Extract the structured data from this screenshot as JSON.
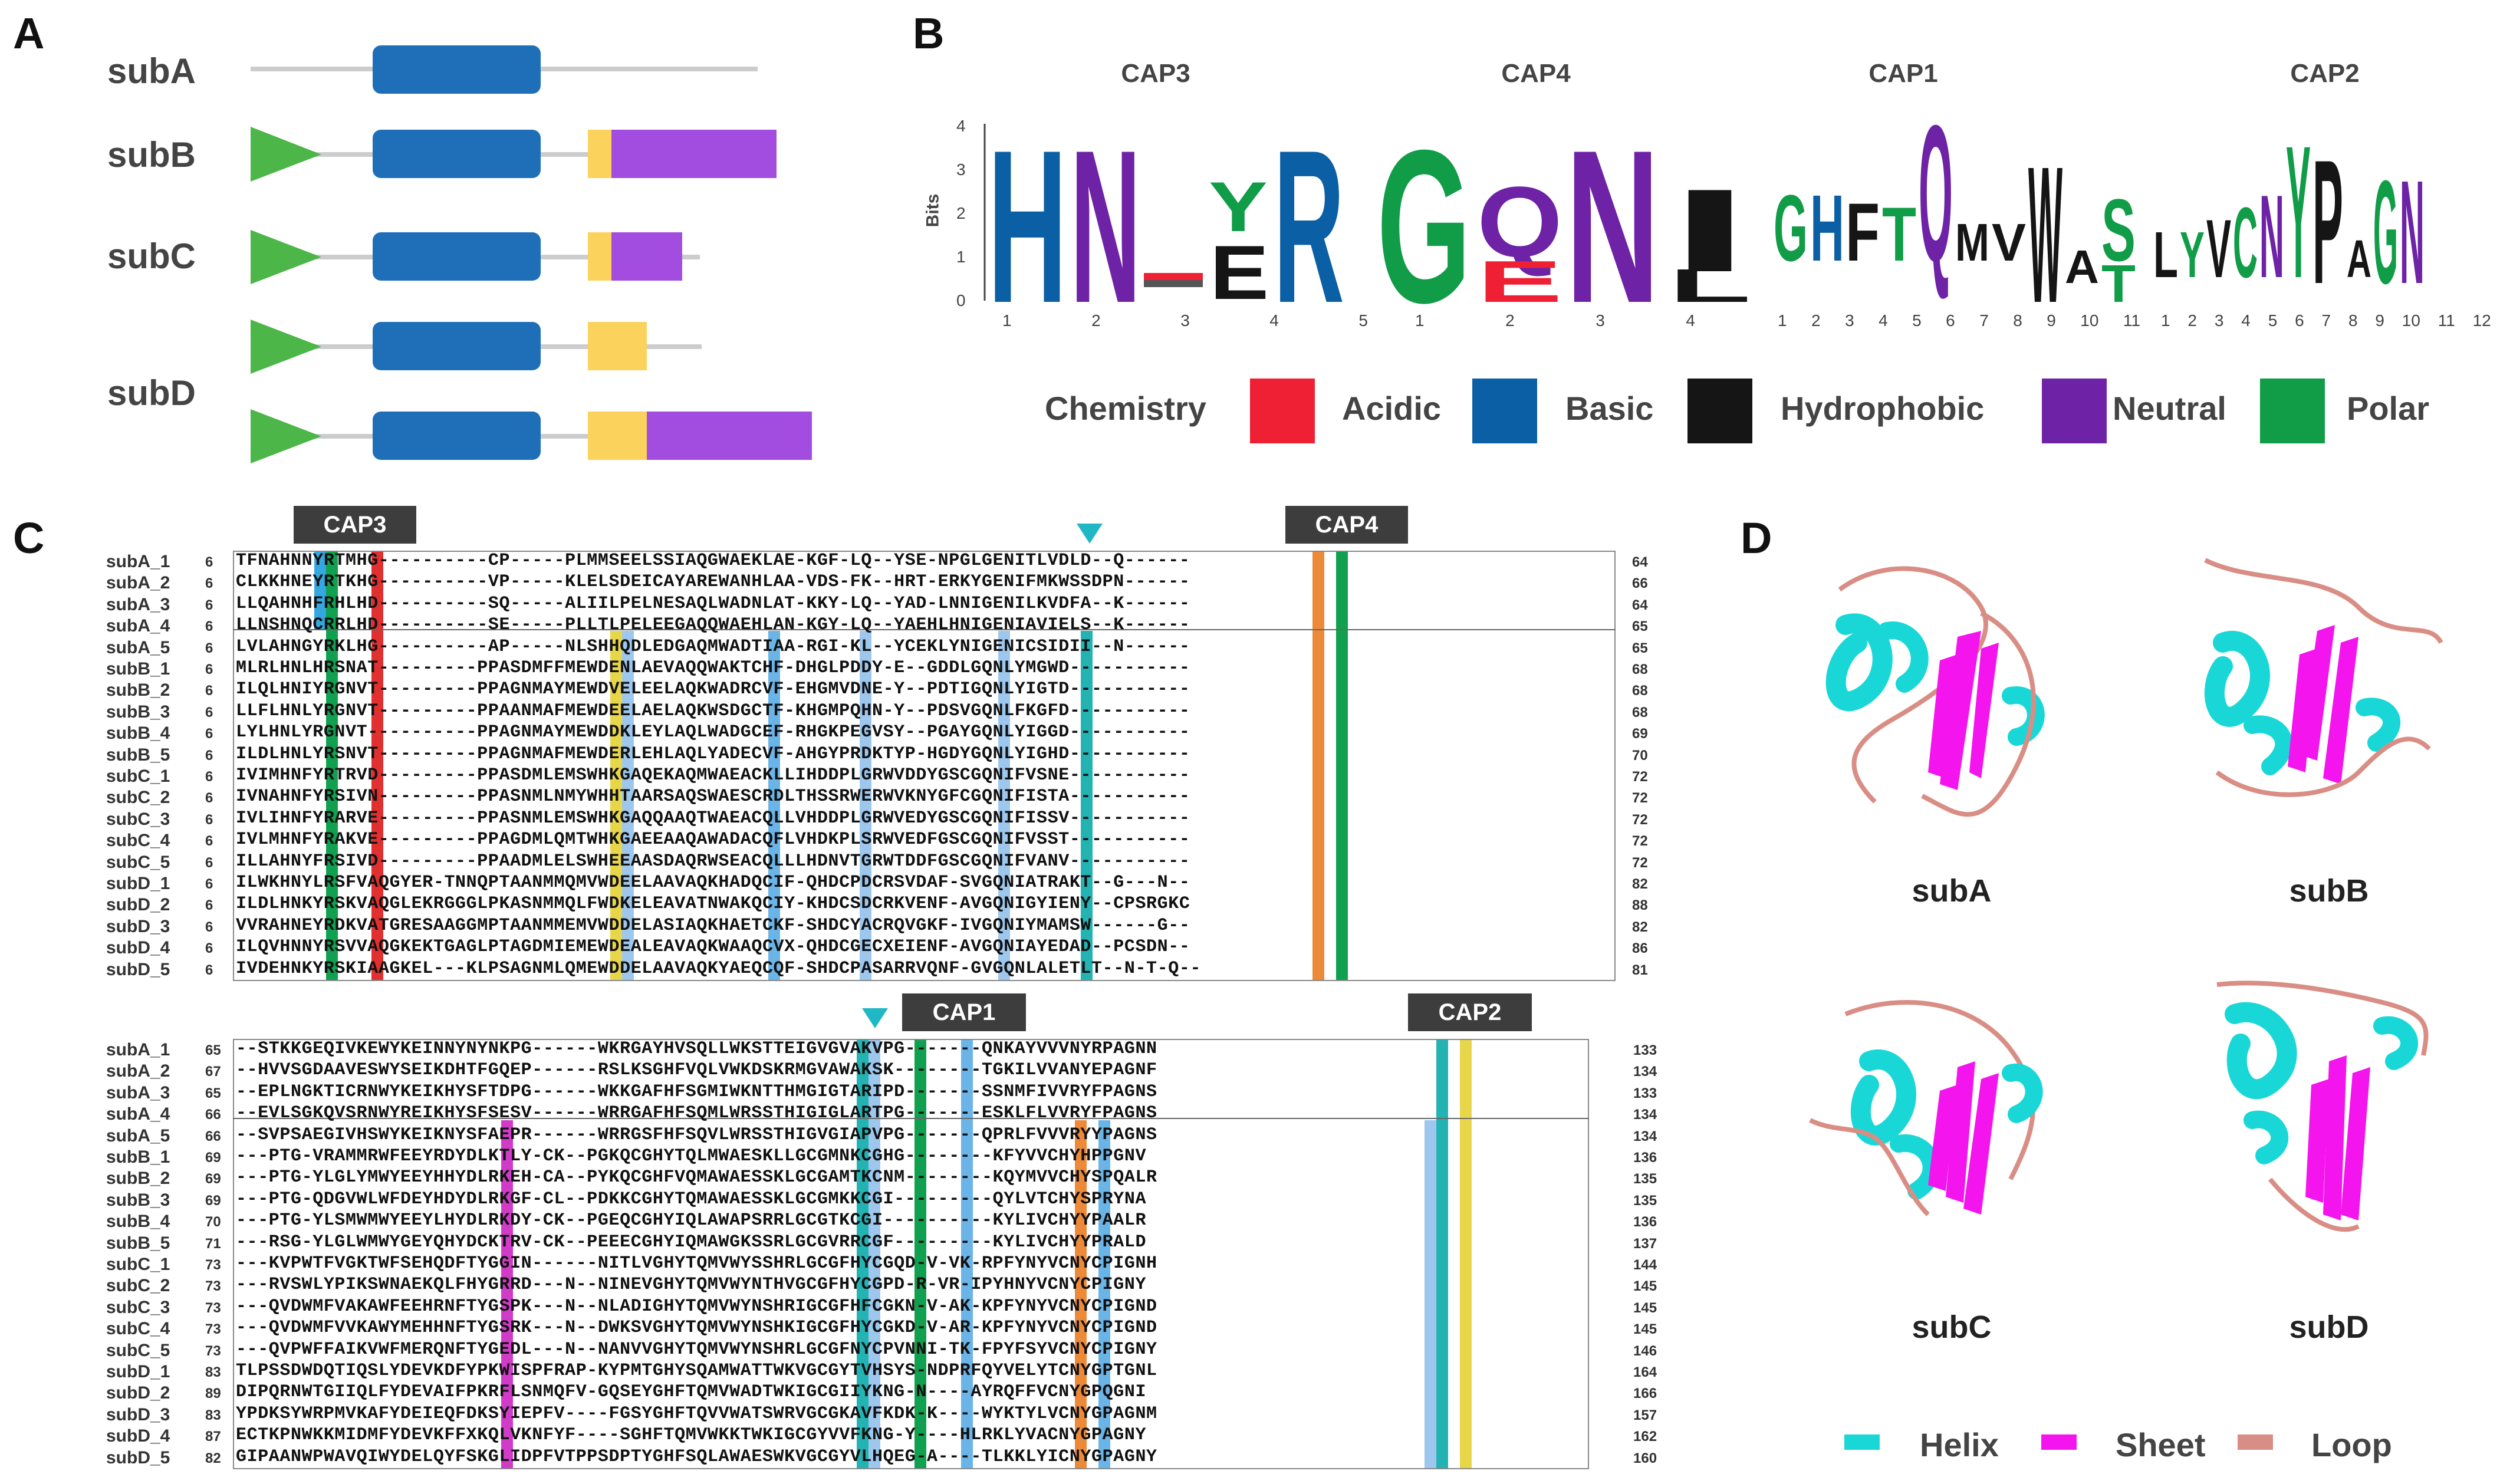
{
  "panels": {
    "a": "A",
    "b": "B",
    "c": "C",
    "d": "D"
  },
  "panelA": {
    "labels": [
      "subA",
      "subB",
      "subC",
      "subD"
    ],
    "colors": {
      "signal": "#4cb649",
      "core": "#1f6fb8",
      "linker": "#fbd35c",
      "cterm": "#a24ddf",
      "line": "#cccccc"
    }
  },
  "panelB": {
    "titles": [
      "CAP3",
      "CAP4",
      "CAP1",
      "CAP2"
    ],
    "ylabel": "Bits",
    "yticks": [
      "4",
      "3",
      "2",
      "1",
      "0"
    ],
    "cap3_ticks": [
      "1",
      "2",
      "3",
      "4",
      "5"
    ],
    "cap4_ticks": [
      "1",
      "2",
      "3",
      "4"
    ],
    "cap1_ticks": [
      "1",
      "2",
      "3",
      "4",
      "5",
      "6",
      "7",
      "8",
      "9",
      "10",
      "11"
    ],
    "cap2_ticks": [
      "1",
      "2",
      "3",
      "4",
      "5",
      "6",
      "7",
      "8",
      "9",
      "10",
      "11",
      "12"
    ],
    "cap3_letters": [
      "H",
      "N",
      "Y",
      "R"
    ],
    "cap3_small": [
      "E"
    ],
    "cap4_letters": [
      "G",
      "Q",
      "N",
      "I"
    ],
    "cap4_small": [
      "E",
      "L"
    ],
    "cap1_letters": [
      "G",
      "H",
      "F",
      "T",
      "Q",
      "M",
      "V",
      "W",
      "A",
      "S",
      "T"
    ],
    "cap2_letters": [
      "L",
      "Y",
      "V",
      "C",
      "N",
      "Y",
      "P",
      "A",
      "G",
      "N"
    ],
    "legend": {
      "title": "Chemistry",
      "items": [
        {
          "label": "Acidic",
          "color": "#ef2033"
        },
        {
          "label": "Basic",
          "color": "#0b5fa5"
        },
        {
          "label": "Hydrophobic",
          "color": "#151515"
        },
        {
          "label": "Neutral",
          "color": "#6e23a6"
        },
        {
          "label": "Polar",
          "color": "#119c48"
        }
      ]
    }
  },
  "panelC": {
    "caps_top": [
      "CAP3",
      "CAP4"
    ],
    "caps_bottom": [
      "CAP1",
      "CAP2"
    ],
    "block1": {
      "names": [
        "subA_1",
        "subA_2",
        "subA_3",
        "subA_4",
        "subA_5",
        "subB_1",
        "subB_2",
        "subB_3",
        "subB_4",
        "subB_5",
        "subC_1",
        "subC_2",
        "subC_3",
        "subC_4",
        "subC_5",
        "subD_1",
        "subD_2",
        "subD_3",
        "subD_4",
        "subD_5"
      ],
      "starts": [
        "6",
        "6",
        "6",
        "6",
        "6",
        "6",
        "6",
        "6",
        "6",
        "6",
        "6",
        "6",
        "6",
        "6",
        "6",
        "6",
        "6",
        "6",
        "6",
        "6"
      ],
      "seqs": [
        "TFNAHNNYRTMHG----------CP-----PLMMSEELSSIAQGWAEKLAE-KGF-LQ--YSE-NPGLGENITLVDLD--Q------",
        "CLKKHNEYRTKHG----------VP-----KLELSDEICAYAREWANHLAA-VDS-FK--HRT-ERKYGENIFMKWSSDPN------",
        "LLQAHNHFRHLHD----------SQ-----ALIILPELNESAQLWADNLAT-KKY-LQ--YAD-LNNIGENILKVDFA--K------",
        "LLNSHNQCRRLHD----------SE-----PLLTLPELEEGAQQWAEHLAN-KGY-LQ--YAEHLHNIGENIAVIELS--K------",
        "LVLAHNGYRKLHG----------AP-----NLSHHQDLEDGAQMWADTIAA-RGI-KL--YCEKLYNIGENICSIDII--N------",
        "MLRLHNLHRSNAT---------PPASDMFFMEWDENLAEVAQQWAKTCHF-DHGLPDDY-E--GDDLGQNLYMGWD-----------",
        "ILQLHNIYRGNVT---------PPAGNMAYMEWDVELEELAQKWADRCVF-EHGMVDNE-Y--PDTIGQNLYIGTD-----------",
        "LLFLHNLYRGNVT---------PPAANMAFMEWDEELAELAQKWSDGCTF-KHGMPQHN-Y--PDSVGQNLFKGFD-----------",
        "LYLHNLYRGNVT----------PPAGNMAYMEWDDKLEYLAQLWADGCEF-RHGKPEGVSY--PGAYGQNLYIGGD-----------",
        "ILDLHNLYRSNVT---------PPAGNMAFMEWDERLEHLAQLYADECVF-AHGYPRDKTYP-HGDYGQNLYIGHD-----------",
        "IVIMHNFYRTRVD---------PPASDMLEMSWHKGAQEKAQMWAEACKLLIHDDPLGRWVDDYGSCGQNIFVSNE-----------",
        "IVNAHNFYRSIVN---------PPASNMLNMYWHHTAARSAQSWAESCRDLTHSSRWERWVKNYGFCGQNIFISTA-----------",
        "IVLIHNFYRARVE---------PPASNMLEMSWHKGAQQAAQTWAEACQLLVHDDPLGRWVEDYGSCGQNIFISSV-----------",
        "IVLMHNFYRAKVE---------PPAGDMLQMTWHKGAEEAAQAWADACQFLVHDKPLSRWVEDFGSCGQNIFVSST-----------",
        "ILLAHNYFRSIVD---------PPAADMLELSWHEEAASDAQRWSEACQLLLHDNVTGRWTDDFGSCGQNIFVANV-----------",
        "ILWKHNYLRSFVAQGYER-TNNQPTAANMMQMVWDEELAAVAQKHADQCIF-QHDCPDCRSVDAF-SVGQNIATRAKT--G---N--",
        "ILDLHNKYRSKVAQGLEKRGGGLPKASNMMQLFWDKELEAVATNWAKQCIY-KHDCSDCRKVENF-AVGQNIGYIENY--CPSRGKC",
        "VVRAHNEYRDKVATGRESAAGGMPTAANMMEMVWDDELASIAQKHAETCKF-SHDCYACRQVGKF-IVGQNIYMAMSW------G--",
        "ILQVHNNYRSVVAQGKEKTGAGLPTAGDMIEMEWDEALEAVAQKWAAQCVX-QHDCGECXEIENF-AVGQNIAYEDAD--PCSDN--",
        "IVDEHNKYRSKIAAGKEL---KLPSAGNMLQMEWDDELAAVAQKYAEQCQF-SHDCPASARRVQNF-GVGQNLALETLT--N-T-Q--"
      ],
      "ends": [
        "64",
        "66",
        "64",
        "65",
        "65",
        "68",
        "68",
        "68",
        "69",
        "70",
        "72",
        "72",
        "72",
        "72",
        "72",
        "82",
        "88",
        "82",
        "86",
        "81"
      ]
    },
    "block2": {
      "names": [
        "subA_1",
        "subA_2",
        "subA_3",
        "subA_4",
        "subA_5",
        "subB_1",
        "subB_2",
        "subB_3",
        "subB_4",
        "subB_5",
        "subC_1",
        "subC_2",
        "subC_3",
        "subC_4",
        "subC_5",
        "subD_1",
        "subD_2",
        "subD_3",
        "subD_4",
        "subD_5"
      ],
      "starts": [
        "65",
        "67",
        "65",
        "66",
        "66",
        "69",
        "69",
        "69",
        "70",
        "71",
        "73",
        "73",
        "73",
        "73",
        "73",
        "83",
        "89",
        "83",
        "87",
        "82"
      ],
      "seqs": [
        "--STKKGEQIVKEWYKEINNYNYNKPG------WKRGAYHVSQLLWKSTTEIGVGVAKVPG-------QNKAYVVVNYRPAGNN",
        "--HVVSGDAAVESWYSEIKDHTFGQEP------RSLKSGHFVQLVWKDSKRMGVAWAKSK--------TGKILVVANYEPAGNF",
        "--EPLNGKTICRNWYKEIKHYSFTDPG------WKKGAFHFSGMIWKNTTHMGIGTARIPD-------SSNMFIVVRYFPAGNS",
        "--EVLSGKQVSRNWYREIKHYSFSESV------WRRGAFHFSQMLWRSSTHIGIGLARTPG-------ESKLFLVVRYFPAGNS",
        "--SVPSAEGIVHSWYKEIKNYSFAEPR------WRRGSFHFSQVLWRSSTHIGVGIAPVPG-------QPRLFVVVRYYPAGNS",
        "---PTG-VRAMMRWFEEYRDYDLKTLY-CK--PGKQCGHYTQLMWAESKLLGCGMNKCGHG--------KFYVVCHYHPPGNV",
        "---PTG-YLGLYMWYEEYHHYDLRKEH-CA--PYKQCGHFVQMAWAESSKLGCGAMTKCNM--------KQYMVVCHYSPQALR",
        "---PTG-QDGVWLWFDEYHDYDLRKGF-CL--PDKKCGHYTQMAWAESSKLGCGMKKCGI---------QYLVTCHYSPRYNA",
        "---PTG-YLSMWMWYEEYLHYDLRKDY-CK--PGEQCGHYIQLAWAPSRRLGCGTKCGI----------KYLIVCHYYPAALR",
        "---RSG-YLGLWMWYGEYQHYDCKTRV-CK--PEEECGHYIQMAWGKSSRLGCGVRRCGF---------KYLIVCHYYPRALD",
        "---KVPWTFVGKTWFSEHQDFTYGGIN------NITLVGHYTQMVWYSSHRLGCGFHYCGQD-V-VK-RPFYNYVCNYCPIGNH",
        "---RVSWLYPIKSWNAEKQLFHYGRRD---N--NINEVGHYTQMVWYNTHVGCGFHYCGPD-R-VR-IPYHNYVCNYCPIGNY",
        "---QVDWMFVAKAWFEEHRNFTYGSPK---N--NLADIGHYTQMVWYNSHRIGCGFHFCGKN-V-AK-KPFYNYVCNYCPIGND",
        "---QVDWMFVVKAWYMEHHNFTYGSRK---N--DWKSVGHYTQMVWYNSHKIGCGFHYCGKD-V-AR-KPFYNYVCNYCPIGND",
        "---QVPWFFAIKVWFMERQNFTYGEDL---N--NANVVGHYTQMVWYNSHRLGCGFNYCPVNNI-TK-FPYFSYVCNYCPIGNY",
        "TLPSSDWDQTIQSLYDEVKDFYPKWISPFRAP-KYPMTGHYSQAMWATTWKVGCGYTVHSYS-NDPRFQYVELYTCNYGPTGNL",
        "DIPQRNWTGIIQLFYDEVAIFPKRFLSNMQFV-GQSEYGHFTQMVWADTWKIGCGIIYKNG-N----AYRQFFVCNYGPQGNI",
        "YPDKSYWRPMVKAFYDEIEQFDKSYIEPFV----FGSYGHFTQVVWATSWRVGCGKAVFKDK-K----WYKTYLVCNYGPAGNM",
        "ECTKPNWKKMIDMFYDEVKFFXKQLVKNFYF----SGHFTQMVWKKTWKIGCGYVVFKNG-Y----HLRKLYVACNYGPAGNY",
        "GIPAANWPWAVQIWYDELQYFSKGLIDPFVTPPSDPTYGHFSQLAWAESWKVGCGYVLHQEG-A----TLKKLYICNYGPAGNY"
      ],
      "ends": [
        "133",
        "134",
        "133",
        "134",
        "134",
        "136",
        "135",
        "135",
        "136",
        "137",
        "144",
        "145",
        "145",
        "145",
        "146",
        "164",
        "166",
        "157",
        "162",
        "160"
      ]
    }
  },
  "panelD": {
    "labels": [
      "subA",
      "subB",
      "subC",
      "subD"
    ],
    "legend": [
      {
        "label": "Helix",
        "color": "#1ad7d7"
      },
      {
        "label": "Sheet",
        "color": "#f414ee"
      },
      {
        "label": "Loop",
        "color": "#d88e84"
      }
    ]
  }
}
